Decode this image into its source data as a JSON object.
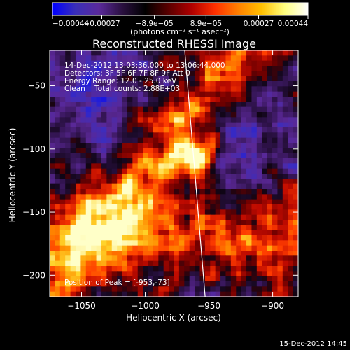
{
  "chart_data": {
    "type": "heatmap",
    "title": "Reconstructed RHESSI Image",
    "xlabel": "Heliocentric X (arcsec)",
    "ylabel": "Heliocentric Y (arcsec)",
    "xlim": [
      -1075,
      -880
    ],
    "ylim": [
      -217,
      -22
    ],
    "x_ticks": [
      {
        "value": -1050,
        "label": "−1050"
      },
      {
        "value": -1000,
        "label": "−1000"
      },
      {
        "value": -950,
        "label": "−950"
      },
      {
        "value": -900,
        "label": "−900"
      }
    ],
    "y_ticks": [
      {
        "value": -50,
        "label": "−50"
      },
      {
        "value": -100,
        "label": "−100"
      },
      {
        "value": -150,
        "label": "−150"
      },
      {
        "value": -200,
        "label": "−200"
      }
    ],
    "colorbar": {
      "range": [
        -0.00044,
        0.00044
      ],
      "units_label": "(photons cm⁻² s⁻¹ asec⁻²)",
      "ticks": [
        {
          "value": -0.00044,
          "label": "−0.00044"
        },
        {
          "value": -0.00027,
          "label": "−0.00027"
        },
        {
          "value": -8.9e-05,
          "label": "−8.9e−05"
        },
        {
          "value": 8.9e-05,
          "label": "8.9e−05"
        },
        {
          "value": 0.00027,
          "label": "0.00027"
        },
        {
          "value": 0.00044,
          "label": "0.00044"
        }
      ],
      "colors": [
        "#0000ff",
        "#3a2fb8",
        "#5a2a9a",
        "#2a1040",
        "#000000",
        "#5a0000",
        "#b00000",
        "#ff3000",
        "#ff8000",
        "#ffc000",
        "#ffff80",
        "#ffffff"
      ]
    },
    "peak_position": [
      -953,
      -73
    ],
    "limb_line": [
      {
        "x": -969,
        "y": -22
      },
      {
        "x": -953,
        "y": -217
      }
    ],
    "annotations": [
      "14-Dec-2012 13:03:36.000 to 13:06:44.000",
      "Detectors: 3F 5F 6F 7F 8F 9F  Att 0",
      "Energy Range: 12.0 - 25.0 keV",
      "Clean    Total counts: 2.88E+03",
      "Position of Peak = [-953,-73]"
    ],
    "timestamp": "15-Dec-2012 14:45",
    "grid_nx": 48,
    "grid_ny": 48
  }
}
